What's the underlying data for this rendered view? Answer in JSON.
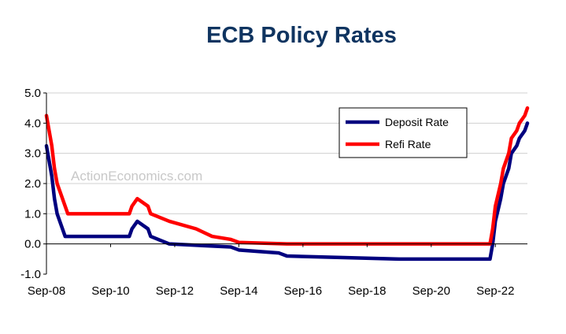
{
  "chart_data": {
    "type": "line",
    "title": "ECB  Policy Rates",
    "watermark": "ActionEconomics.com",
    "xlabel": "",
    "ylabel": "",
    "x_range": [
      "2008-09",
      "2023-09"
    ],
    "ylim": [
      -1.0,
      5.0
    ],
    "yticks": [
      "5.0",
      "4.0",
      "3.0",
      "2.0",
      "1.0",
      "0.0",
      "-1.0"
    ],
    "ytick_values": [
      5,
      4,
      3,
      2,
      1,
      0,
      -1
    ],
    "xticks": [
      "Sep-08",
      "Sep-10",
      "Sep-12",
      "Sep-14",
      "Sep-16",
      "Sep-18",
      "Sep-20",
      "Sep-22"
    ],
    "xtick_dates": [
      "2008-09",
      "2010-09",
      "2012-09",
      "2014-09",
      "2016-09",
      "2018-09",
      "2020-09",
      "2022-09"
    ],
    "grid": "horizontal",
    "legend_position": "top-right",
    "series": [
      {
        "name": "Deposit Rate",
        "color": "#00007f",
        "points": [
          [
            "2008-09",
            3.25
          ],
          [
            "2008-10",
            2.75
          ],
          [
            "2008-11",
            2.25
          ],
          [
            "2008-12",
            1.5
          ],
          [
            "2009-01",
            1.0
          ],
          [
            "2009-04",
            0.25
          ],
          [
            "2011-04",
            0.25
          ],
          [
            "2011-05",
            0.5
          ],
          [
            "2011-07",
            0.75
          ],
          [
            "2011-11",
            0.5
          ],
          [
            "2011-12",
            0.25
          ],
          [
            "2012-07",
            0.0
          ],
          [
            "2014-06",
            -0.1
          ],
          [
            "2014-09",
            -0.2
          ],
          [
            "2015-12",
            -0.3
          ],
          [
            "2016-03",
            -0.4
          ],
          [
            "2019-09",
            -0.5
          ],
          [
            "2022-07",
            -0.5
          ],
          [
            "2022-08",
            0.0
          ],
          [
            "2022-09",
            0.75
          ],
          [
            "2022-11",
            1.5
          ],
          [
            "2022-12",
            2.0
          ],
          [
            "2023-02",
            2.5
          ],
          [
            "2023-03",
            3.0
          ],
          [
            "2023-05",
            3.25
          ],
          [
            "2023-06",
            3.5
          ],
          [
            "2023-08",
            3.75
          ],
          [
            "2023-09",
            4.0
          ]
        ]
      },
      {
        "name": "Refi Rate",
        "color": "#ff0000",
        "points": [
          [
            "2008-09",
            4.25
          ],
          [
            "2008-10",
            3.75
          ],
          [
            "2008-11",
            3.25
          ],
          [
            "2008-12",
            2.5
          ],
          [
            "2009-01",
            2.0
          ],
          [
            "2009-03",
            1.5
          ],
          [
            "2009-04",
            1.25
          ],
          [
            "2009-05",
            1.0
          ],
          [
            "2011-04",
            1.0
          ],
          [
            "2011-05",
            1.25
          ],
          [
            "2011-07",
            1.5
          ],
          [
            "2011-11",
            1.25
          ],
          [
            "2011-12",
            1.0
          ],
          [
            "2012-07",
            0.75
          ],
          [
            "2013-05",
            0.5
          ],
          [
            "2013-11",
            0.25
          ],
          [
            "2014-06",
            0.15
          ],
          [
            "2014-09",
            0.05
          ],
          [
            "2016-03",
            0.0
          ],
          [
            "2022-07",
            0.0
          ],
          [
            "2022-08",
            0.5
          ],
          [
            "2022-09",
            1.25
          ],
          [
            "2022-11",
            2.0
          ],
          [
            "2022-12",
            2.5
          ],
          [
            "2023-02",
            3.0
          ],
          [
            "2023-03",
            3.5
          ],
          [
            "2023-05",
            3.75
          ],
          [
            "2023-06",
            4.0
          ],
          [
            "2023-08",
            4.25
          ],
          [
            "2023-09",
            4.5
          ]
        ]
      }
    ]
  }
}
